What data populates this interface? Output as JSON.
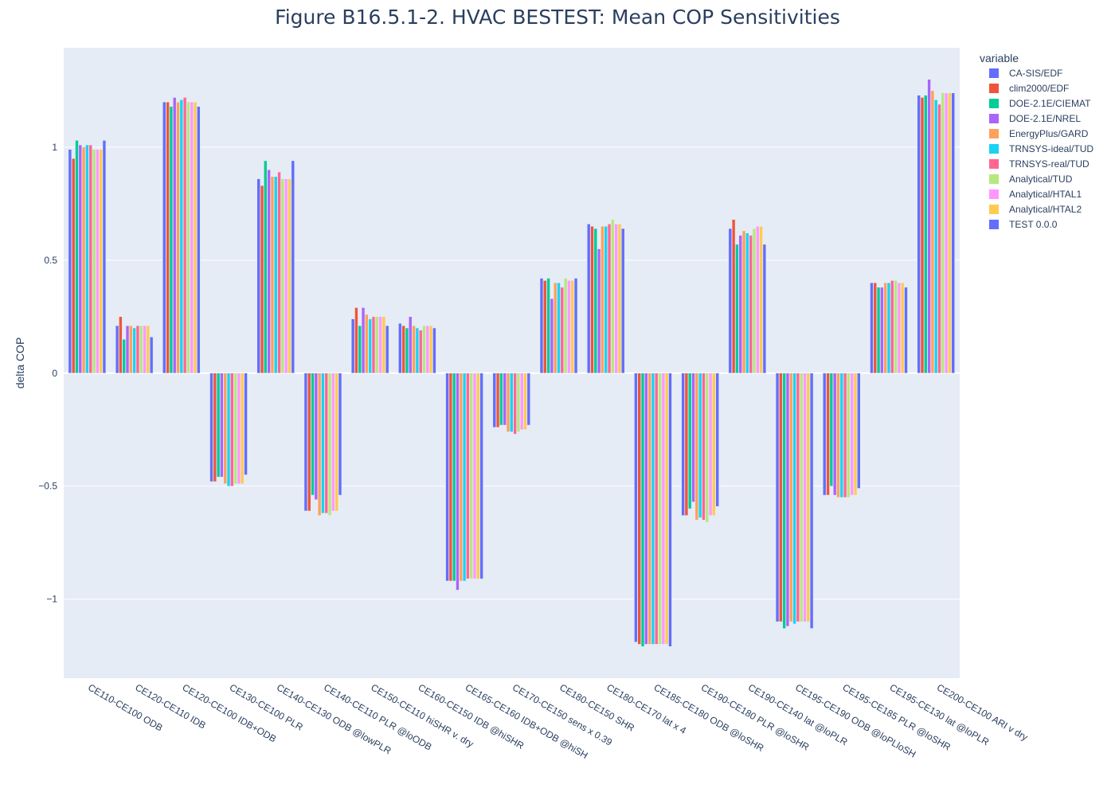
{
  "chart_data": {
    "type": "bar",
    "title": "Figure B16.5.1-2. HVAC BESTEST: Mean COP Sensitivities",
    "xlabel": "",
    "ylabel": "delta COP",
    "ylim": [
      -1.35,
      1.44
    ],
    "yticks": [
      -1,
      -0.5,
      0,
      0.5,
      1
    ],
    "ytick_labels": [
      "−1",
      "−0.5",
      "0",
      "0.5",
      "1"
    ],
    "grid": true,
    "legend_title": "variable",
    "legend_position": "top-right",
    "categories": [
      "CE110-CE100 ODB",
      "CE120-CE110 IDB",
      "CE120-CE100 IDB+ODB",
      "CE130-CE100 PLR",
      "CE140-CE130 ODB @lowPLR",
      "CE140-CE110 PLR @loODB",
      "CE150-CE110 hiSHR v. dry",
      "CE160-CE150 IDB @hiSHR",
      "CE165-CE160 IDB+ODB @hiSH",
      "CE170-CE150 sens x 0.39",
      "CE180-CE150 SHR",
      "CE180-CE170 lat x 4",
      "CE185-CE180 ODB @loSHR",
      "CE190-CE180 PLR @loSHR",
      "CE190-CE140 lat @loPLR",
      "CE195-CE190 ODB @loPLloSH",
      "CE195-CE185 PLR @loSHR",
      "CE195-CE130 lat @loPLR",
      "CE200-CE100 ARI v dry"
    ],
    "series": [
      {
        "name": "CA-SIS/EDF",
        "color": "#636efa",
        "values": [
          0.99,
          0.21,
          1.2,
          -0.48,
          0.86,
          -0.61,
          0.24,
          0.22,
          -0.92,
          -0.24,
          0.42,
          0.66,
          -1.19,
          -0.63,
          0.64,
          -1.1,
          -0.54,
          0.4,
          1.23
        ]
      },
      {
        "name": "clim2000/EDF",
        "color": "#EF553B",
        "values": [
          0.95,
          0.25,
          1.2,
          -0.48,
          0.83,
          -0.61,
          0.29,
          0.21,
          -0.92,
          -0.24,
          0.41,
          0.65,
          -1.2,
          -0.63,
          0.68,
          -1.1,
          -0.54,
          0.4,
          1.22
        ]
      },
      {
        "name": "DOE-2.1E/CIEMAT",
        "color": "#00cc96",
        "values": [
          1.03,
          0.15,
          1.18,
          -0.46,
          0.94,
          -0.54,
          0.21,
          0.2,
          -0.92,
          -0.23,
          0.42,
          0.64,
          -1.21,
          -0.6,
          0.57,
          -1.13,
          -0.5,
          0.38,
          1.23
        ]
      },
      {
        "name": "DOE-2.1E/NREL",
        "color": "#ab63fa",
        "values": [
          1.01,
          0.21,
          1.22,
          -0.46,
          0.9,
          -0.56,
          0.29,
          0.25,
          -0.96,
          -0.23,
          0.33,
          0.55,
          -1.2,
          -0.57,
          0.61,
          -1.12,
          -0.54,
          0.38,
          1.3
        ]
      },
      {
        "name": "EnergyPlus/GARD",
        "color": "#FFA15A",
        "values": [
          1.0,
          0.21,
          1.2,
          -0.49,
          0.87,
          -0.63,
          0.26,
          0.21,
          -0.92,
          -0.26,
          0.4,
          0.65,
          -1.2,
          -0.65,
          0.63,
          -1.1,
          -0.55,
          0.4,
          1.25
        ]
      },
      {
        "name": "TRNSYS-ideal/TUD",
        "color": "#19d3f3",
        "values": [
          1.01,
          0.2,
          1.21,
          -0.5,
          0.87,
          -0.62,
          0.24,
          0.2,
          -0.92,
          -0.26,
          0.4,
          0.65,
          -1.2,
          -0.64,
          0.62,
          -1.11,
          -0.55,
          0.4,
          1.21
        ]
      },
      {
        "name": "TRNSYS-real/TUD",
        "color": "#FF6692",
        "values": [
          1.01,
          0.21,
          1.22,
          -0.5,
          0.89,
          -0.62,
          0.25,
          0.19,
          -0.91,
          -0.27,
          0.38,
          0.66,
          -1.2,
          -0.65,
          0.61,
          -1.1,
          -0.55,
          0.41,
          1.19
        ]
      },
      {
        "name": "Analytical/TUD",
        "color": "#B6E880",
        "values": [
          0.99,
          0.21,
          1.2,
          -0.49,
          0.86,
          -0.63,
          0.25,
          0.21,
          -0.91,
          -0.26,
          0.42,
          0.68,
          -1.2,
          -0.66,
          0.64,
          -1.1,
          -0.55,
          0.41,
          1.24
        ]
      },
      {
        "name": "Analytical/HTAL1",
        "color": "#FF97FF",
        "values": [
          0.99,
          0.21,
          1.2,
          -0.49,
          0.86,
          -0.61,
          0.25,
          0.21,
          -0.91,
          -0.25,
          0.41,
          0.66,
          -1.2,
          -0.63,
          0.65,
          -1.1,
          -0.54,
          0.4,
          1.24
        ]
      },
      {
        "name": "Analytical/HTAL2",
        "color": "#FECB52",
        "values": [
          0.99,
          0.21,
          1.2,
          -0.49,
          0.86,
          -0.61,
          0.25,
          0.21,
          -0.91,
          -0.25,
          0.41,
          0.66,
          -1.2,
          -0.63,
          0.65,
          -1.1,
          -0.54,
          0.4,
          1.24
        ]
      },
      {
        "name": "TEST 0.0.0",
        "color": "#636efa",
        "values": [
          1.03,
          0.16,
          1.18,
          -0.45,
          0.94,
          -0.54,
          0.21,
          0.2,
          -0.91,
          -0.23,
          0.42,
          0.64,
          -1.21,
          -0.59,
          0.57,
          -1.13,
          -0.51,
          0.38,
          1.24
        ]
      }
    ]
  }
}
